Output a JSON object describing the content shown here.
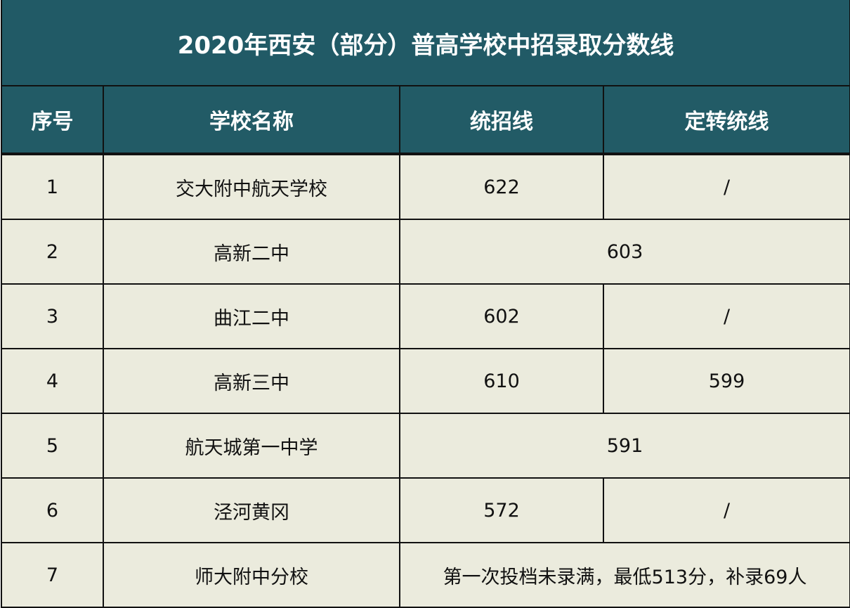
{
  "title": "2020年西安（部分）普高学校中招录取分数线",
  "colors": {
    "header_bg": "#215a66",
    "header_text": "#ffffff",
    "body_bg": "#ebebdd"
  },
  "columns": [
    "序号",
    "学校名称",
    "统招线",
    "定转统线"
  ],
  "rows": [
    {
      "no": "1",
      "school": "交大附中航天学校",
      "tz": "622",
      "dz": "/"
    },
    {
      "no": "2",
      "school": "高新二中",
      "merged": "603"
    },
    {
      "no": "3",
      "school": "曲江二中",
      "tz": "602",
      "dz": "/"
    },
    {
      "no": "4",
      "school": "高新三中",
      "tz": "610",
      "dz": "599"
    },
    {
      "no": "5",
      "school": "航天城第一中学",
      "merged": "591"
    },
    {
      "no": "6",
      "school": "泾河黄冈",
      "tz": "572",
      "dz": "/"
    },
    {
      "no": "7",
      "school": "师大附中分校",
      "merged": "第一次投档未录满，最低513分，补录69人"
    }
  ]
}
